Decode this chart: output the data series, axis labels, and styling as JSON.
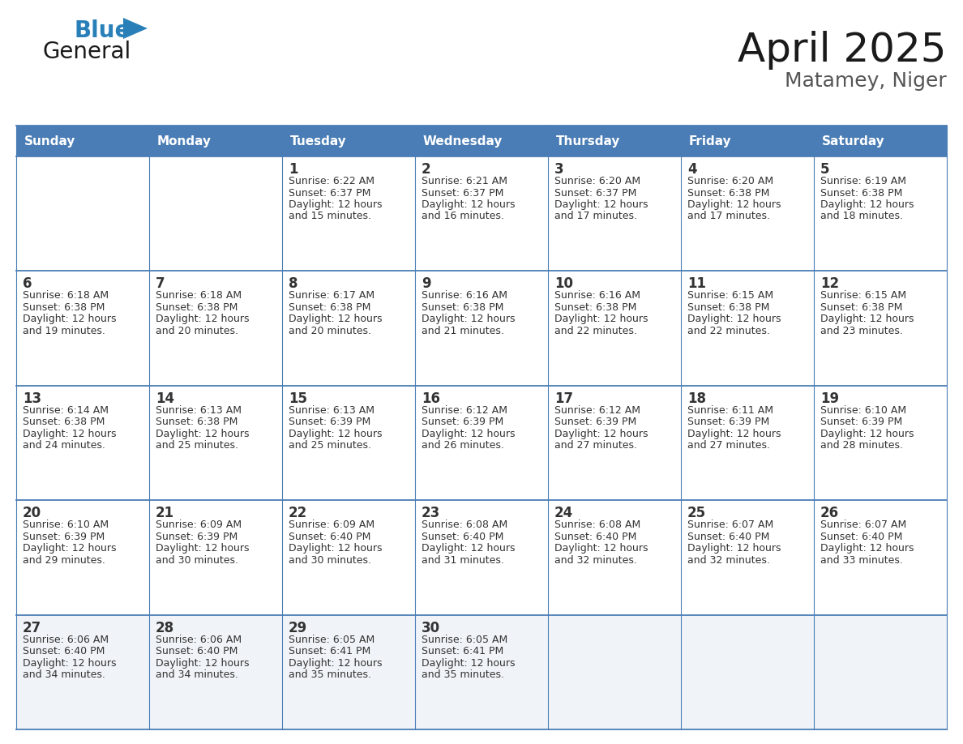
{
  "title": "April 2025",
  "subtitle": "Matamey, Niger",
  "header_bg": "#4A7DB5",
  "header_text": "#FFFFFF",
  "border_color": "#4A7DB5",
  "text_color": "#333333",
  "alt_row_bg": "#F0F4F8",
  "days_of_week": [
    "Sunday",
    "Monday",
    "Tuesday",
    "Wednesday",
    "Thursday",
    "Friday",
    "Saturday"
  ],
  "weeks": [
    [
      {
        "day": "",
        "sunrise": "",
        "sunset": "",
        "daylight": ""
      },
      {
        "day": "",
        "sunrise": "",
        "sunset": "",
        "daylight": ""
      },
      {
        "day": "1",
        "sunrise": "6:22 AM",
        "sunset": "6:37 PM",
        "daylight": "12 hours\nand 15 minutes."
      },
      {
        "day": "2",
        "sunrise": "6:21 AM",
        "sunset": "6:37 PM",
        "daylight": "12 hours\nand 16 minutes."
      },
      {
        "day": "3",
        "sunrise": "6:20 AM",
        "sunset": "6:37 PM",
        "daylight": "12 hours\nand 17 minutes."
      },
      {
        "day": "4",
        "sunrise": "6:20 AM",
        "sunset": "6:38 PM",
        "daylight": "12 hours\nand 17 minutes."
      },
      {
        "day": "5",
        "sunrise": "6:19 AM",
        "sunset": "6:38 PM",
        "daylight": "12 hours\nand 18 minutes."
      }
    ],
    [
      {
        "day": "6",
        "sunrise": "6:18 AM",
        "sunset": "6:38 PM",
        "daylight": "12 hours\nand 19 minutes."
      },
      {
        "day": "7",
        "sunrise": "6:18 AM",
        "sunset": "6:38 PM",
        "daylight": "12 hours\nand 20 minutes."
      },
      {
        "day": "8",
        "sunrise": "6:17 AM",
        "sunset": "6:38 PM",
        "daylight": "12 hours\nand 20 minutes."
      },
      {
        "day": "9",
        "sunrise": "6:16 AM",
        "sunset": "6:38 PM",
        "daylight": "12 hours\nand 21 minutes."
      },
      {
        "day": "10",
        "sunrise": "6:16 AM",
        "sunset": "6:38 PM",
        "daylight": "12 hours\nand 22 minutes."
      },
      {
        "day": "11",
        "sunrise": "6:15 AM",
        "sunset": "6:38 PM",
        "daylight": "12 hours\nand 22 minutes."
      },
      {
        "day": "12",
        "sunrise": "6:15 AM",
        "sunset": "6:38 PM",
        "daylight": "12 hours\nand 23 minutes."
      }
    ],
    [
      {
        "day": "13",
        "sunrise": "6:14 AM",
        "sunset": "6:38 PM",
        "daylight": "12 hours\nand 24 minutes."
      },
      {
        "day": "14",
        "sunrise": "6:13 AM",
        "sunset": "6:38 PM",
        "daylight": "12 hours\nand 25 minutes."
      },
      {
        "day": "15",
        "sunrise": "6:13 AM",
        "sunset": "6:39 PM",
        "daylight": "12 hours\nand 25 minutes."
      },
      {
        "day": "16",
        "sunrise": "6:12 AM",
        "sunset": "6:39 PM",
        "daylight": "12 hours\nand 26 minutes."
      },
      {
        "day": "17",
        "sunrise": "6:12 AM",
        "sunset": "6:39 PM",
        "daylight": "12 hours\nand 27 minutes."
      },
      {
        "day": "18",
        "sunrise": "6:11 AM",
        "sunset": "6:39 PM",
        "daylight": "12 hours\nand 27 minutes."
      },
      {
        "day": "19",
        "sunrise": "6:10 AM",
        "sunset": "6:39 PM",
        "daylight": "12 hours\nand 28 minutes."
      }
    ],
    [
      {
        "day": "20",
        "sunrise": "6:10 AM",
        "sunset": "6:39 PM",
        "daylight": "12 hours\nand 29 minutes."
      },
      {
        "day": "21",
        "sunrise": "6:09 AM",
        "sunset": "6:39 PM",
        "daylight": "12 hours\nand 30 minutes."
      },
      {
        "day": "22",
        "sunrise": "6:09 AM",
        "sunset": "6:40 PM",
        "daylight": "12 hours\nand 30 minutes."
      },
      {
        "day": "23",
        "sunrise": "6:08 AM",
        "sunset": "6:40 PM",
        "daylight": "12 hours\nand 31 minutes."
      },
      {
        "day": "24",
        "sunrise": "6:08 AM",
        "sunset": "6:40 PM",
        "daylight": "12 hours\nand 32 minutes."
      },
      {
        "day": "25",
        "sunrise": "6:07 AM",
        "sunset": "6:40 PM",
        "daylight": "12 hours\nand 32 minutes."
      },
      {
        "day": "26",
        "sunrise": "6:07 AM",
        "sunset": "6:40 PM",
        "daylight": "12 hours\nand 33 minutes."
      }
    ],
    [
      {
        "day": "27",
        "sunrise": "6:06 AM",
        "sunset": "6:40 PM",
        "daylight": "12 hours\nand 34 minutes."
      },
      {
        "day": "28",
        "sunrise": "6:06 AM",
        "sunset": "6:40 PM",
        "daylight": "12 hours\nand 34 minutes."
      },
      {
        "day": "29",
        "sunrise": "6:05 AM",
        "sunset": "6:41 PM",
        "daylight": "12 hours\nand 35 minutes."
      },
      {
        "day": "30",
        "sunrise": "6:05 AM",
        "sunset": "6:41 PM",
        "daylight": "12 hours\nand 35 minutes."
      },
      {
        "day": "",
        "sunrise": "",
        "sunset": "",
        "daylight": ""
      },
      {
        "day": "",
        "sunrise": "",
        "sunset": "",
        "daylight": ""
      },
      {
        "day": "",
        "sunrise": "",
        "sunset": "",
        "daylight": ""
      }
    ]
  ],
  "fig_width": 11.88,
  "fig_height": 9.18,
  "dpi": 100,
  "logo_general_color": "#1a1a1a",
  "logo_blue_color": "#2980B9",
  "logo_triangle_color": "#2980B9",
  "title_color": "#1a1a1a",
  "subtitle_color": "#555555",
  "title_fontsize": 36,
  "subtitle_fontsize": 18,
  "header_fontsize": 11,
  "day_num_fontsize": 12,
  "cell_text_fontsize": 9
}
